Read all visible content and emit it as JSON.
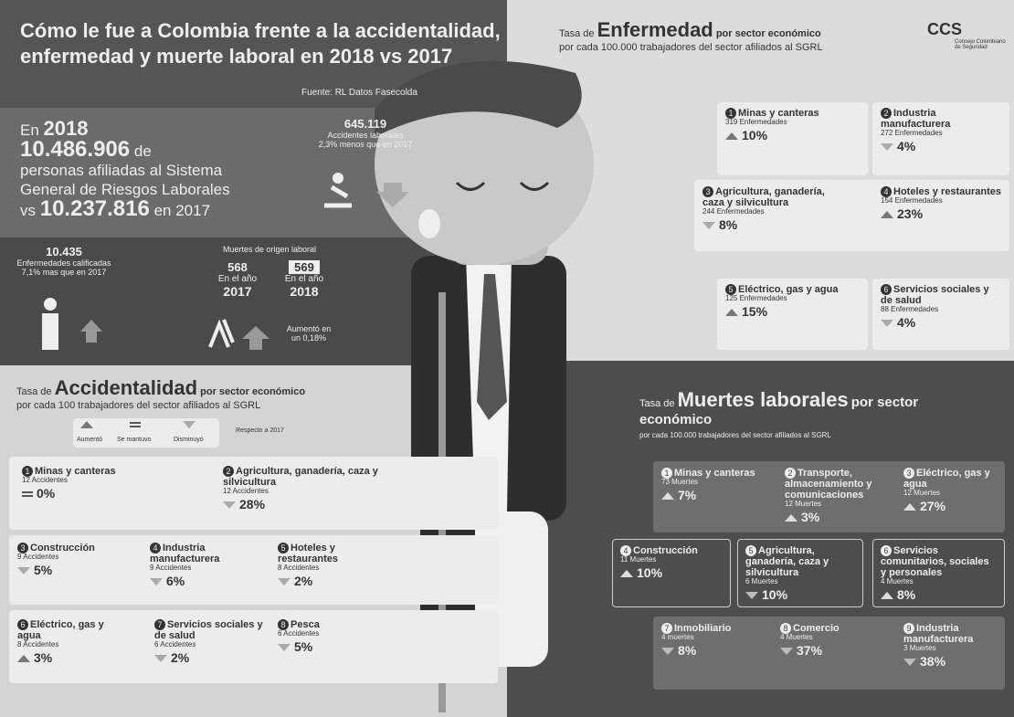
{
  "header": {
    "title_line1": "Cómo le fue a Colombia frente a la accidentalidad,",
    "title_line2": "enfermedad y muerte laboral en 2018 vs 2017",
    "source": "Fuente: RL Datos Fasecolda"
  },
  "logo": {
    "name": "CCS",
    "subtitle": "Consejo Colombiano de Seguridad"
  },
  "summary": {
    "en": "En",
    "year_2018": "2018",
    "affiliates_2018": "10.486.906",
    "de": "de",
    "text": "personas afiliadas al Sistema General de Riesgos Laborales",
    "vs": "vs",
    "affiliates_2017": "10.237.816",
    "en_2017": "en 2017"
  },
  "accidents_total": {
    "value": "645.119",
    "label": "Accidentes laborales",
    "note": "2,3% menos que en 2017"
  },
  "illness_total": {
    "value": "10.435",
    "label": "Enfermedades calificadas",
    "note": "7,1% mas que en 2017"
  },
  "deaths_total": {
    "title": "Muertes de origen laboral",
    "value_2017": "568",
    "label_2017": "En el año",
    "year_2017": "2017",
    "value_2018": "569",
    "label_2018": "En el año",
    "year_2018": "2018",
    "note": "Aumentó en un 0,18%"
  },
  "accident_section": {
    "tasa": "Tasa de",
    "title": "Accidentalidad",
    "suffix": "por sector económico",
    "subtitle": "por cada 100 trabajadores del sector afiliados al SGRL",
    "legend": {
      "up": "Aumentó",
      "same": "Se mantuvo",
      "down": "Disminuyó",
      "note": "Respecto a 2017"
    },
    "items": [
      {
        "n": "1",
        "name": "Minas y canteras",
        "count": "12 Accidentes",
        "trend": "same",
        "pct": "0%"
      },
      {
        "n": "2",
        "name": "Agricultura, ganadería, caza y silvicultura",
        "count": "12 Accidentes",
        "trend": "down",
        "pct": "28%"
      },
      {
        "n": "3",
        "name": "Construcción",
        "count": "9 Accidentes",
        "trend": "down",
        "pct": "5%"
      },
      {
        "n": "4",
        "name": "Industria manufacturera",
        "count": "9 Accidentes",
        "trend": "down",
        "pct": "6%"
      },
      {
        "n": "5",
        "name": "Hoteles y restaurantes",
        "count": "8 Accidentes",
        "trend": "down",
        "pct": "2%"
      },
      {
        "n": "6",
        "name": "Eléctrico, gas y agua",
        "count": "8 Accidentes",
        "trend": "up",
        "pct": "3%"
      },
      {
        "n": "7",
        "name": "Servicios sociales y de salud",
        "count": "6 Accidentes",
        "trend": "down",
        "pct": "2%"
      },
      {
        "n": "8",
        "name": "Pesca",
        "count": "6 Accidentes",
        "trend": "down",
        "pct": "5%"
      }
    ]
  },
  "illness_section": {
    "tasa": "Tasa de",
    "title": "Enfermedad",
    "suffix": "por sector económico",
    "subtitle": "por cada 100.000 trabajadores del sector afiliados al SGRL",
    "items": [
      {
        "n": "1",
        "name": "Minas y canteras",
        "count": "319 Enfermedades",
        "trend": "up",
        "pct": "10%"
      },
      {
        "n": "2",
        "name": "Industria manufacturera",
        "count": "272 Enfermedades",
        "trend": "down",
        "pct": "4%"
      },
      {
        "n": "3",
        "name": "Agricultura, ganadería, caza y silvicultura",
        "count": "244 Enfermedades",
        "trend": "down",
        "pct": "8%"
      },
      {
        "n": "4",
        "name": "Hoteles y restaurantes",
        "count": "154 Enfermedades",
        "trend": "up",
        "pct": "23%"
      },
      {
        "n": "5",
        "name": "Eléctrico, gas y agua",
        "count": "125 Enfermedades",
        "trend": "up",
        "pct": "15%"
      },
      {
        "n": "6",
        "name": "Servicios sociales y de salud",
        "count": "88 Enfermedades",
        "trend": "down",
        "pct": "4%"
      }
    ]
  },
  "death_section": {
    "tasa": "Tasa de",
    "title": "Muertes laborales",
    "suffix": "por sector económico",
    "subtitle": "por cada 100.000 trabajadores del sector afiliados al SGRL",
    "items": [
      {
        "n": "1",
        "name": "Minas y canteras",
        "count": "73 Muertes",
        "trend": "up",
        "pct": "7%"
      },
      {
        "n": "2",
        "name": "Transporte, almacenamiento y comunicaciones",
        "count": "12 Muertes",
        "trend": "up",
        "pct": "3%"
      },
      {
        "n": "3",
        "name": "Eléctrico, gas y agua",
        "count": "12 Muertes",
        "trend": "up",
        "pct": "27%"
      },
      {
        "n": "4",
        "name": "Construcción",
        "count": "11 Muertes",
        "trend": "up",
        "pct": "10%"
      },
      {
        "n": "5",
        "name": "Agricultura, ganadería, caza y silvicultura",
        "count": "6 Muertes",
        "trend": "down",
        "pct": "10%"
      },
      {
        "n": "6",
        "name": "Servicios comunitarios, sociales y personales",
        "count": "4 Muertes",
        "trend": "up",
        "pct": "8%"
      },
      {
        "n": "7",
        "name": "Inmobiliario",
        "count": "4 muertes",
        "trend": "down",
        "pct": "8%"
      },
      {
        "n": "8",
        "name": "Comercio",
        "count": "4 Muertes",
        "trend": "down",
        "pct": "37%"
      },
      {
        "n": "9",
        "name": "Industria manufacturera",
        "count": "3 Muertes",
        "trend": "down",
        "pct": "38%"
      }
    ]
  }
}
